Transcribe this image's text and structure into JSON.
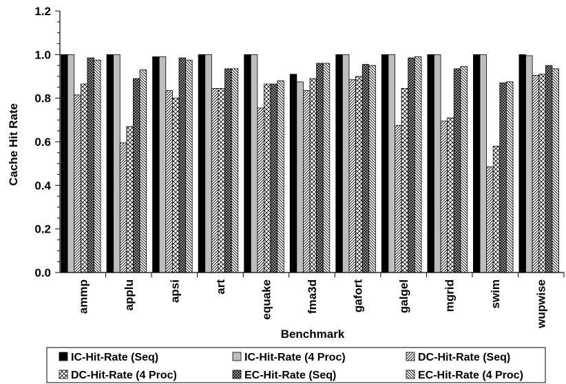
{
  "chart_data": {
    "type": "bar",
    "title": "",
    "xlabel": "Benchmark",
    "ylabel": "Cache Hit Rate",
    "ylim": [
      0,
      1.2
    ],
    "yticks": [
      "0.0",
      "0.2",
      "0.4",
      "0.6",
      "0.8",
      "1.0",
      "1.2"
    ],
    "categories": [
      "ammp",
      "applu",
      "apsi",
      "art",
      "equake",
      "fma3d",
      "gafort",
      "galgel",
      "mgrid",
      "swim",
      "wupwise"
    ],
    "grid": false,
    "legend_position": "bottom",
    "series": [
      {
        "name": "IC-Hit-Rate (Seq)",
        "fill": "solid-black",
        "values": [
          1.0,
          1.0,
          0.99,
          1.0,
          1.0,
          0.91,
          1.0,
          1.0,
          1.0,
          1.0,
          1.0
        ]
      },
      {
        "name": "IC-Hit-Rate (4 Proc)",
        "fill": "solid-gray",
        "values": [
          1.0,
          1.0,
          0.99,
          1.0,
          1.0,
          0.875,
          1.0,
          1.0,
          1.0,
          1.0,
          0.995
        ]
      },
      {
        "name": "DC-Hit-Rate (Seq)",
        "fill": "diagonal",
        "values": [
          0.815,
          0.595,
          0.835,
          0.845,
          0.755,
          0.835,
          0.885,
          0.675,
          0.695,
          0.485,
          0.905
        ]
      },
      {
        "name": "DC-Hit-Rate (4 Proc)",
        "fill": "crosshatch",
        "values": [
          0.865,
          0.67,
          0.8,
          0.845,
          0.865,
          0.89,
          0.9,
          0.845,
          0.71,
          0.58,
          0.91
        ]
      },
      {
        "name": "EC-Hit-Rate (Seq)",
        "fill": "dark-check",
        "values": [
          0.985,
          0.89,
          0.985,
          0.935,
          0.865,
          0.96,
          0.955,
          0.985,
          0.935,
          0.87,
          0.95
        ]
      },
      {
        "name": "EC-Hit-Rate (4 Proc)",
        "fill": "backslash",
        "values": [
          0.975,
          0.93,
          0.975,
          0.935,
          0.88,
          0.96,
          0.95,
          0.99,
          0.945,
          0.875,
          0.935
        ]
      }
    ]
  }
}
